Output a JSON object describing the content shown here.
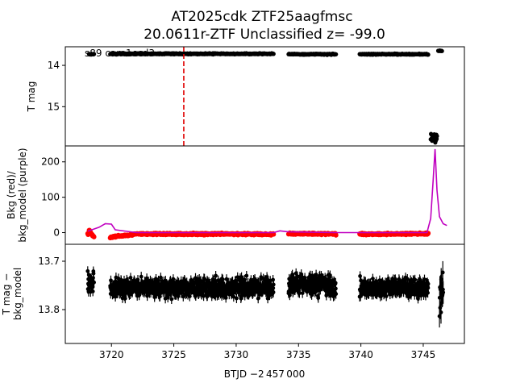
{
  "figure": {
    "title_line1": "AT2025cdk  ZTF25aagfmsc",
    "title_line2": "20.0611r-ZTF Unclassified z= -99.0",
    "xlabel": "BTJD −2 457 000",
    "annotation": "s89 cam1ccd3"
  },
  "chart_data": [
    {
      "type": "scatter",
      "panel": "top",
      "ylabel": "T mag",
      "ylim_inverted": [
        13.55,
        15.95
      ],
      "xlim": [
        3716.3,
        3748.3
      ],
      "yticks": [
        "14",
        "15"
      ],
      "vline": {
        "x": 3725.8,
        "color": "#e00000",
        "style": "dashed"
      },
      "point_color": "#000000",
      "series": [
        {
          "x_range": [
            3718.2,
            3718.6
          ],
          "y": 13.73
        },
        {
          "x_range": [
            3719.9,
            3733.0
          ],
          "y": 13.72
        },
        {
          "x_range": [
            3734.2,
            3738.0
          ],
          "y": 13.73
        },
        {
          "x_range": [
            3739.9,
            3745.4
          ],
          "y": 13.73
        },
        {
          "x_range": [
            3746.2,
            3746.5
          ],
          "y": 13.65
        },
        {
          "x_range": [
            3745.6,
            3746.1
          ],
          "y": 15.75
        }
      ]
    },
    {
      "type": "line",
      "panel": "middle",
      "ylabel": "Bkg (red)/\nbkg_model (purple)",
      "ylim": [
        -33,
        245
      ],
      "xlim": [
        3716.3,
        3748.3
      ],
      "yticks": [
        "0",
        "100",
        "200"
      ],
      "series": [
        {
          "color": "#ff0000",
          "kind": "points",
          "x": [
            3718.2,
            3718.5,
            3719.9,
            3722,
            3725,
            3728,
            3731,
            3733.0,
            3734.2,
            3736,
            3738.0,
            3739.9,
            3742,
            3745.3
          ],
          "y": [
            8,
            -10,
            -13,
            -4,
            -4,
            -4,
            -4,
            -5,
            -3,
            -3,
            -4,
            -4,
            -4,
            -3
          ]
        },
        {
          "color": "#c000c0",
          "kind": "line",
          "x": [
            3718.1,
            3718.5,
            3719.0,
            3719.5,
            3720.0,
            3720.3,
            3722,
            3725,
            3730,
            3733.0,
            3733.5,
            3734.2,
            3738.0,
            3740,
            3745.3,
            3745.6,
            3745.8,
            3745.95,
            3746.1,
            3746.3,
            3746.6,
            3746.9
          ],
          "y": [
            4,
            9,
            15,
            25,
            24,
            8,
            0,
            0,
            0,
            0,
            5,
            2,
            0,
            0,
            0,
            40,
            150,
            236,
            120,
            45,
            25,
            20
          ]
        }
      ]
    },
    {
      "type": "scatter",
      "panel": "bottom",
      "ylabel": "T mag −\nbkg_model",
      "ylim_inverted": [
        13.665,
        13.87
      ],
      "xlim": [
        3716.3,
        3748.3
      ],
      "xticks": [
        "3720",
        "3725",
        "3730",
        "3735",
        "3740",
        "3745"
      ],
      "yticks": [
        "13.7",
        "13.8"
      ],
      "point_color": "#000000",
      "series": [
        {
          "x_range": [
            3718.1,
            3718.6
          ],
          "y_range": [
            13.7,
            13.78
          ]
        },
        {
          "x_range": [
            3719.9,
            3733.0
          ],
          "y_range": [
            13.72,
            13.79
          ]
        },
        {
          "x_range": [
            3734.2,
            3738.0
          ],
          "y_range": [
            13.71,
            13.79
          ]
        },
        {
          "x_range": [
            3739.9,
            3745.4
          ],
          "y_range": [
            13.72,
            13.79
          ]
        },
        {
          "x_range": [
            3746.3,
            3746.6
          ],
          "y_range": [
            13.68,
            13.84
          ]
        }
      ]
    }
  ]
}
